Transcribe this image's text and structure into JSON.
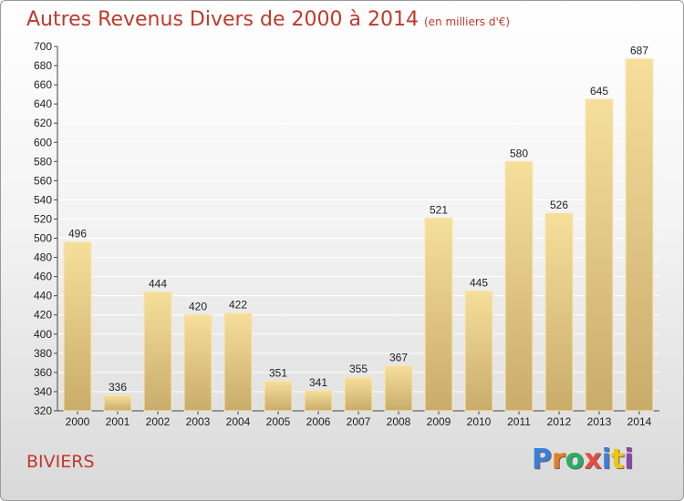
{
  "header": {
    "title": "Autres Revenus Divers de 2000 à 2014",
    "unit": "(en milliers d'€)"
  },
  "footer": {
    "place": "BIVIERS",
    "logo_letters": [
      "P",
      "r",
      "o",
      "x",
      "i",
      "t",
      "i"
    ],
    "logo_colors": [
      "#3b7dd8",
      "#e67e22",
      "#27ae60",
      "#e74c3c",
      "#3b7dd8",
      "#f1c40f",
      "#8e44ad"
    ]
  },
  "chart_data": {
    "type": "bar",
    "title": "Autres Revenus Divers de 2000 à 2014",
    "subtitle": "(en milliers d'€)",
    "categories": [
      "2000",
      "2001",
      "2002",
      "2003",
      "2004",
      "2005",
      "2006",
      "2007",
      "2008",
      "2009",
      "2010",
      "2011",
      "2012",
      "2013",
      "2014"
    ],
    "values": [
      496,
      336,
      444,
      420,
      422,
      351,
      341,
      355,
      367,
      521,
      445,
      580,
      526,
      645,
      687
    ],
    "ylim": [
      320,
      700
    ],
    "yticks": [
      320,
      340,
      360,
      380,
      400,
      420,
      440,
      460,
      480,
      500,
      520,
      540,
      560,
      580,
      600,
      620,
      640,
      660,
      680,
      700
    ],
    "grid": true,
    "bar_color": "#e8cf8c",
    "grid_color": "#ffffff"
  }
}
